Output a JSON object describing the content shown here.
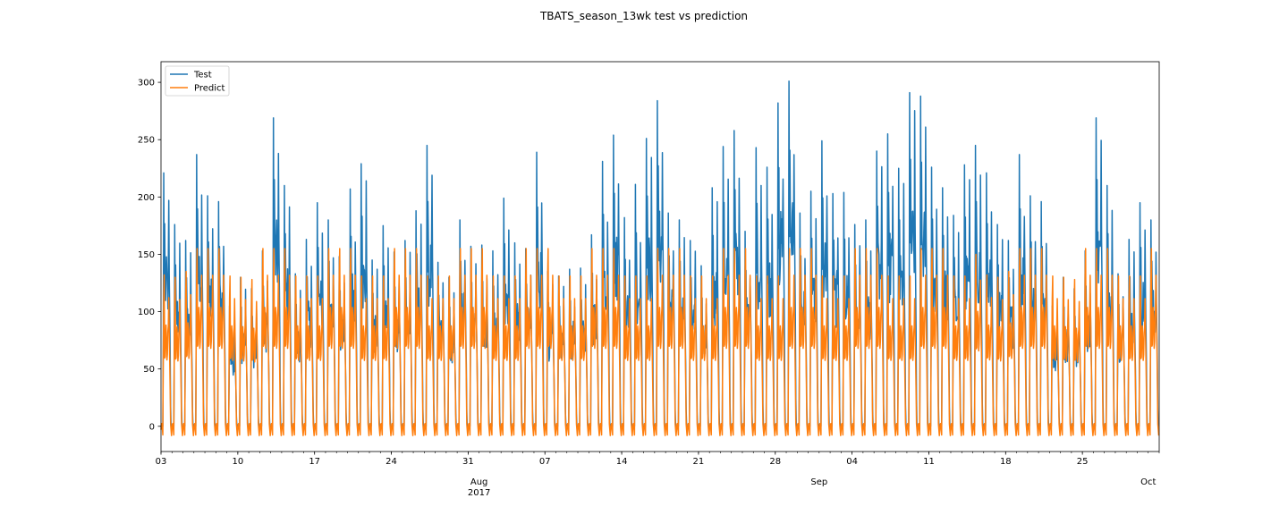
{
  "chart_data": {
    "type": "line",
    "title": "TBATS_season_13wk test vs prediction",
    "xlabel": "",
    "ylabel": "",
    "x_start": "2017-07-03",
    "x_end": "2017-10-02",
    "xlim": [
      "2017-07-03",
      "2017-10-02"
    ],
    "ylim": [
      -22,
      318
    ],
    "yticks": [
      0,
      50,
      100,
      150,
      200,
      250,
      300
    ],
    "xticks": [
      {
        "date": "2017-07-03",
        "label": "03"
      },
      {
        "date": "2017-07-10",
        "label": "10"
      },
      {
        "date": "2017-07-17",
        "label": "17"
      },
      {
        "date": "2017-07-24",
        "label": "24"
      },
      {
        "date": "2017-07-31",
        "label": "31"
      },
      {
        "date": "2017-08-07",
        "label": "07"
      },
      {
        "date": "2017-08-14",
        "label": "14"
      },
      {
        "date": "2017-08-21",
        "label": "21"
      },
      {
        "date": "2017-08-28",
        "label": "28"
      },
      {
        "date": "2017-09-04",
        "label": "04"
      },
      {
        "date": "2017-09-11",
        "label": "11"
      },
      {
        "date": "2017-09-18",
        "label": "18"
      },
      {
        "date": "2017-09-25",
        "label": "25"
      }
    ],
    "month_labels": [
      {
        "date": "2017-08-01",
        "label": "Aug",
        "sublabel": "2017"
      },
      {
        "date": "2017-09-01",
        "label": "Sep",
        "sublabel": ""
      },
      {
        "date": "2017-10-01",
        "label": "Oct",
        "sublabel": ""
      }
    ],
    "grid": false,
    "legend_position": "top-left",
    "series": [
      {
        "name": "Test",
        "color": "#1f77b4",
        "description": "hourly observed values",
        "daily_peaks": [
          221,
          176,
          162,
          237,
          201,
          196,
          105,
          130,
          120,
          153,
          269,
          210,
          133,
          163,
          195,
          180,
          148,
          207,
          229,
          145,
          175,
          152,
          162,
          188,
          245,
          143,
          130,
          180,
          157,
          158,
          153,
          199,
          160,
          155,
          239,
          135,
          131,
          137,
          138,
          167,
          231,
          254,
          182,
          211,
          251,
          284,
          186,
          180,
          162,
          140,
          208,
          244,
          258,
          170,
          243,
          226,
          282,
          301,
          186,
          205,
          249,
          203,
          204,
          176,
          180,
          240,
          255,
          225,
          291,
          288,
          226,
          208,
          184,
          228,
          245
        ]
      },
      {
        "name": "Predict",
        "color": "#ff7f0e",
        "description": "hourly TBATS prediction",
        "daily_peaks": [
          132,
          130,
          135,
          155,
          155,
          155,
          131,
          130,
          128,
          155,
          155,
          155,
          131,
          131,
          131,
          155,
          155,
          155,
          131,
          131,
          131,
          155,
          155,
          155,
          131,
          131,
          131,
          155,
          155,
          155,
          131,
          131,
          131,
          155,
          155,
          155,
          131,
          131,
          131,
          155,
          155,
          155,
          131,
          131,
          131,
          155,
          155,
          155,
          131,
          131,
          131,
          155,
          155,
          155,
          131,
          131,
          131,
          155,
          155,
          155,
          131,
          131,
          131,
          155,
          155,
          155,
          131,
          131,
          131,
          155,
          155,
          155,
          131,
          131,
          150
        ]
      }
    ]
  }
}
